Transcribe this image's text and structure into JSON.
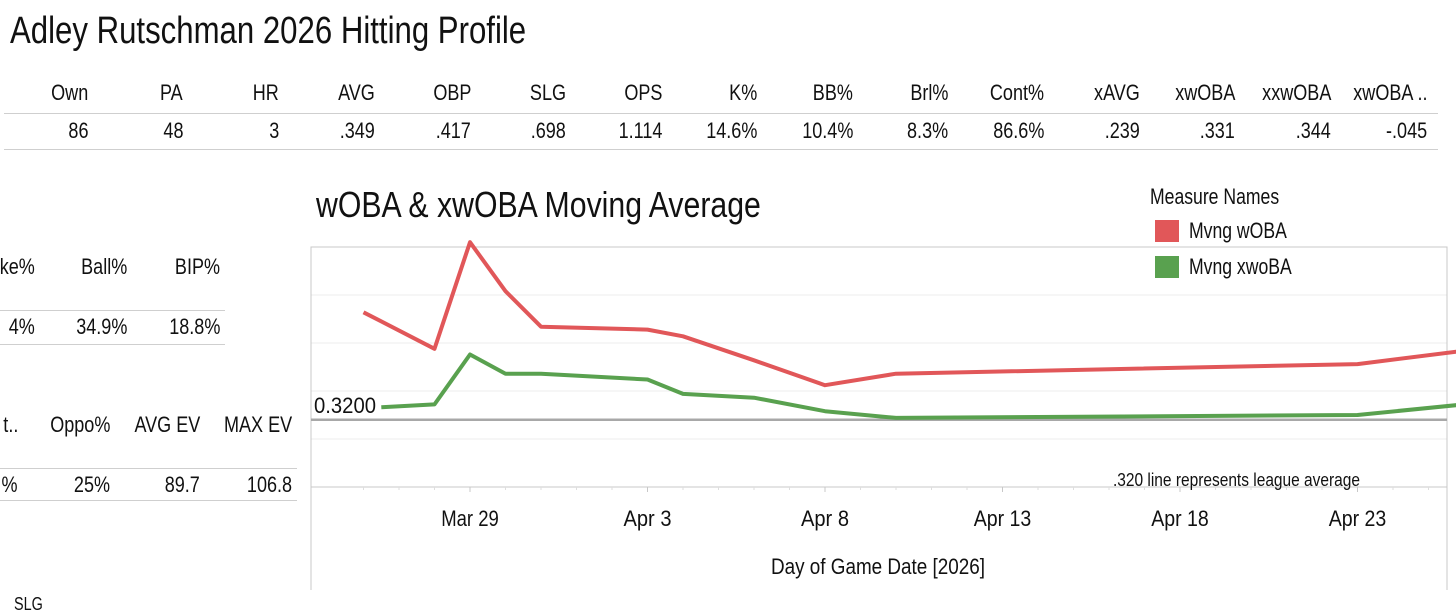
{
  "title": "Adley Rutschman 2026 Hitting Profile",
  "stats": {
    "headers": [
      "Own",
      "PA",
      "HR",
      "AVG",
      "OBP",
      "SLG",
      "OPS",
      "K%",
      "BB%",
      "Brl%",
      "Cont%",
      "xAVG",
      "xwOBA",
      "xxwOBA",
      "xwOBA .."
    ],
    "values": [
      "86",
      "48",
      "3",
      ".349",
      ".417",
      ".698",
      "1.114",
      "14.6%",
      "10.4%",
      "8.3%",
      "86.6%",
      ".239",
      ".331",
      ".344",
      "-.045"
    ]
  },
  "discipline": {
    "headers": [
      "ke%",
      "Ball%",
      "BIP%"
    ],
    "values": [
      "4%",
      "34.9%",
      "18.8%"
    ]
  },
  "batted_ball": {
    "headers": [
      "t..",
      "Oppo%",
      "AVG EV",
      "MAX EV"
    ],
    "values": [
      "%",
      "25%",
      "89.7",
      "106.8"
    ]
  },
  "footer_text": "SLG",
  "chart_data": {
    "type": "line",
    "title": "wOBA & xwOBA Moving Average",
    "xlabel": "Day of Game Date [2026]",
    "ylabel": "",
    "x_ticks": [
      "Mar 29",
      "Apr 3",
      "Apr 8",
      "Apr 13",
      "Apr 18",
      "Apr 23"
    ],
    "x_tick_days": [
      0,
      5,
      10,
      15,
      20,
      25
    ],
    "ylim": [
      0.25,
      0.5
    ],
    "reference_line": {
      "value": 0.32,
      "label": "0.3200",
      "note": ".320 line represents league average"
    },
    "legend_title": "Measure Names",
    "series": [
      {
        "name": "Mvng wOBA",
        "color": "#e15759",
        "x_days": [
          -3,
          -1,
          0,
          1,
          2,
          5,
          6,
          8,
          10,
          12,
          25,
          28
        ],
        "values": [
          0.432,
          0.394,
          0.505,
          0.454,
          0.417,
          0.414,
          0.407,
          0.382,
          0.356,
          0.368,
          0.378,
          0.392
        ]
      },
      {
        "name": "Mvng xwoBA",
        "color": "#59a14f",
        "x_days": [
          -2.5,
          -1,
          0,
          1,
          2,
          5,
          6,
          8,
          10,
          12,
          25,
          28
        ],
        "values": [
          0.333,
          0.336,
          0.388,
          0.368,
          0.368,
          0.362,
          0.347,
          0.343,
          0.329,
          0.322,
          0.325,
          0.336
        ]
      }
    ]
  }
}
